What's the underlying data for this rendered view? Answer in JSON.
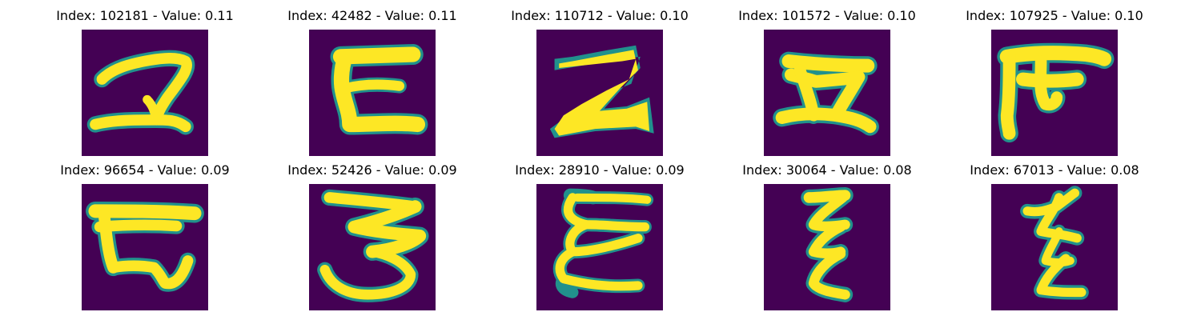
{
  "figure": {
    "background_color": "#ffffff",
    "cell_background_color": "#440154",
    "stroke_colors": {
      "core": "#fde725",
      "mid": "#5ec962",
      "edge": "#21918c"
    },
    "panels": [
      {
        "title": "Index: 102181 - Value: 0.11",
        "image": "handwritten-glyph-2-like"
      },
      {
        "title": "Index: 42482 - Value: 0.11",
        "image": "handwritten-glyph-c-like"
      },
      {
        "title": "Index: 110712 - Value: 0.10",
        "image": "handwritten-glyph-2-bold"
      },
      {
        "title": "Index: 101572 - Value: 0.10",
        "image": "handwritten-glyph-i-beam"
      },
      {
        "title": "Index: 107925 - Value: 0.10",
        "image": "handwritten-glyph-ra"
      },
      {
        "title": "Index: 96654 - Value: 0.09",
        "image": "handwritten-glyph-b-like"
      },
      {
        "title": "Index: 52426 - Value: 0.09",
        "image": "handwritten-glyph-3-like"
      },
      {
        "title": "Index: 28910 - Value: 0.09",
        "image": "handwritten-glyph-epsilon"
      },
      {
        "title": "Index: 30064 - Value: 0.08",
        "image": "handwritten-glyph-zeta-like"
      },
      {
        "title": "Index: 67013 - Value: 0.08",
        "image": "handwritten-glyph-zeta-slant"
      }
    ]
  }
}
